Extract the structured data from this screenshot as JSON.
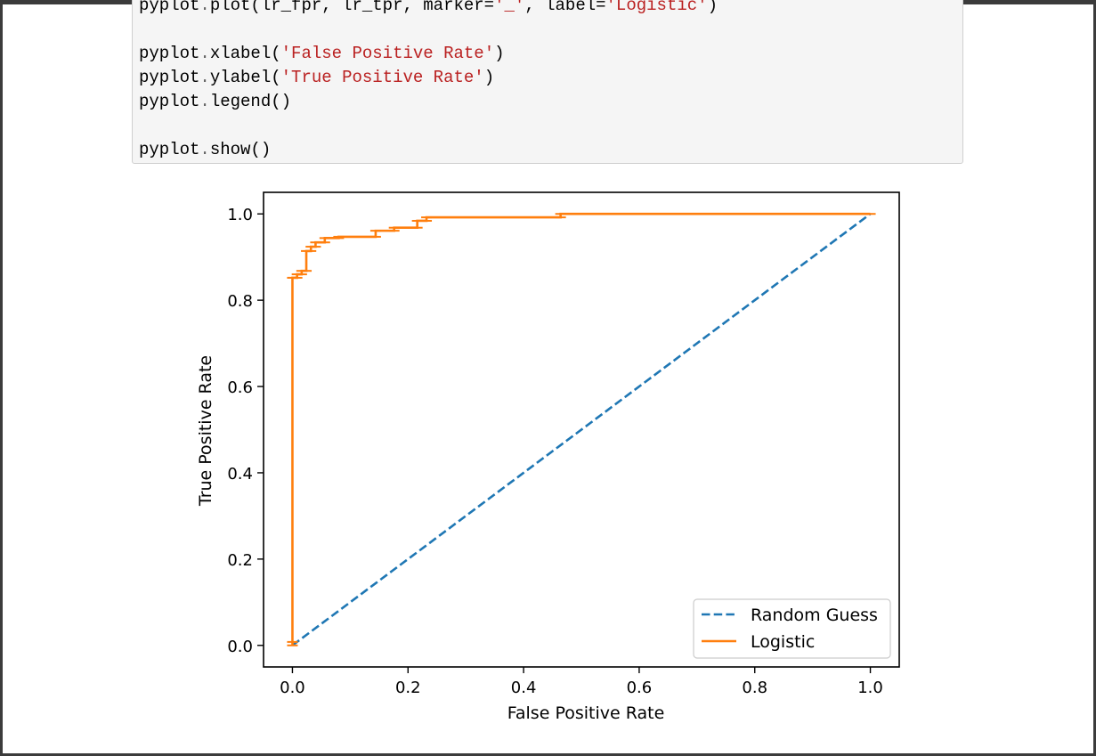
{
  "code_cell": {
    "lines": [
      {
        "parts": [
          {
            "t": "pyplot",
            "c": "n"
          },
          {
            "t": ".",
            "c": "o"
          },
          {
            "t": "plot(",
            "c": "n"
          },
          {
            "t": "lr_fpr, lr_tpr, marker=",
            "c": "n"
          },
          {
            "t": "'_'",
            "c": "s"
          },
          {
            "t": ", label=",
            "c": "n"
          },
          {
            "t": "'Logistic'",
            "c": "s"
          },
          {
            "t": ")",
            "c": "n"
          }
        ]
      },
      {
        "parts": []
      },
      {
        "parts": [
          {
            "t": "pyplot",
            "c": "n"
          },
          {
            "t": ".",
            "c": "o"
          },
          {
            "t": "xlabel(",
            "c": "n"
          },
          {
            "t": "'False Positive Rate'",
            "c": "s"
          },
          {
            "t": ")",
            "c": "n"
          }
        ]
      },
      {
        "parts": [
          {
            "t": "pyplot",
            "c": "n"
          },
          {
            "t": ".",
            "c": "o"
          },
          {
            "t": "ylabel(",
            "c": "n"
          },
          {
            "t": "'True Positive Rate'",
            "c": "s"
          },
          {
            "t": ")",
            "c": "n"
          }
        ]
      },
      {
        "parts": [
          {
            "t": "pyplot",
            "c": "n"
          },
          {
            "t": ".",
            "c": "o"
          },
          {
            "t": "legend()",
            "c": "n"
          }
        ]
      },
      {
        "parts": []
      },
      {
        "parts": [
          {
            "t": "pyplot",
            "c": "n"
          },
          {
            "t": ".",
            "c": "o"
          },
          {
            "t": "show()",
            "c": "n"
          }
        ]
      }
    ]
  },
  "chart_data": {
    "type": "line",
    "xlabel": "False Positive Rate",
    "ylabel": "True Positive Rate",
    "xlim": [
      -0.05,
      1.05
    ],
    "ylim": [
      -0.05,
      1.05
    ],
    "xticks": [
      "0.0",
      "0.2",
      "0.4",
      "0.6",
      "0.8",
      "1.0"
    ],
    "yticks": [
      "0.0",
      "0.2",
      "0.4",
      "0.6",
      "0.8",
      "1.0"
    ],
    "grid": false,
    "legend_position": "lower-right",
    "series": [
      {
        "name": "Random Guess",
        "style": "dashed",
        "color": "#1f77b4",
        "x": [
          0,
          1
        ],
        "y": [
          0,
          1
        ]
      },
      {
        "name": "Logistic",
        "style": "solid",
        "marker": "_",
        "color": "#ff7f0e",
        "x": [
          0.0,
          0.0,
          0.0,
          0.0,
          0.008,
          0.008,
          0.016,
          0.016,
          0.024,
          0.024,
          0.032,
          0.032,
          0.04,
          0.04,
          0.056,
          0.056,
          0.08,
          0.08,
          0.144,
          0.144,
          0.176,
          0.176,
          0.216,
          0.216,
          0.232,
          0.232,
          0.464,
          0.464,
          1.0
        ],
        "y": [
          0.0,
          0.008,
          0.852,
          0.852,
          0.852,
          0.86,
          0.86,
          0.868,
          0.868,
          0.914,
          0.914,
          0.924,
          0.924,
          0.934,
          0.934,
          0.944,
          0.944,
          0.947,
          0.947,
          0.961,
          0.961,
          0.968,
          0.968,
          0.984,
          0.984,
          0.992,
          0.992,
          1.0,
          1.0
        ]
      }
    ]
  }
}
